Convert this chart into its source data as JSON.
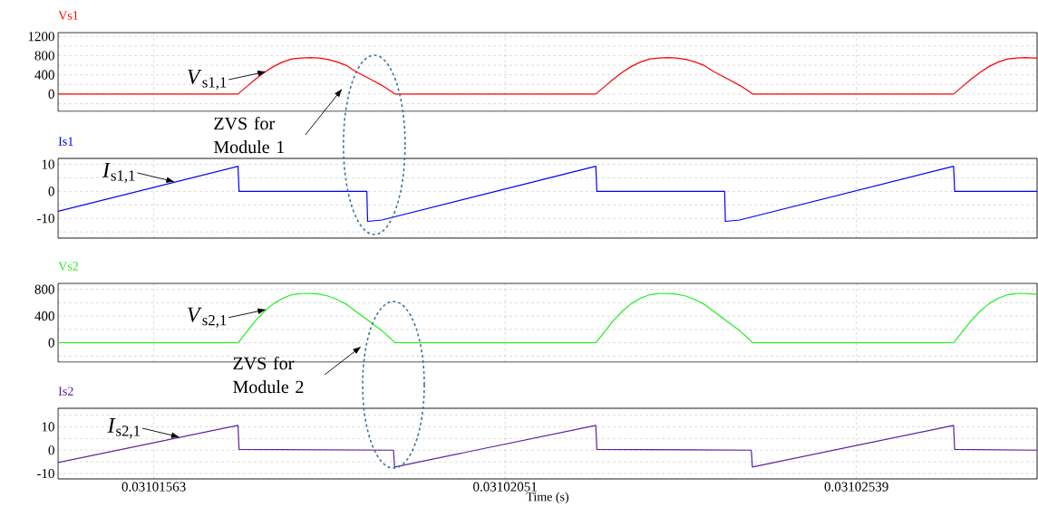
{
  "chart_data": [
    {
      "type": "line",
      "xlim": [
        0.0310143,
        0.0310279
      ],
      "xticks": [
        0.03101563,
        0.03102051,
        0.03102539
      ],
      "ylim": [
        -360,
        1280
      ],
      "yticks": [
        {
          "value": -200,
          "label": null
        },
        0,
        {
          "value": 200,
          "label": null
        },
        400,
        {
          "value": 600,
          "label": null
        },
        800,
        {
          "value": 1000,
          "label": null
        },
        1200
      ],
      "grid": true,
      "tick_labels": "y",
      "series": [
        {
          "name": "Vs1",
          "color": "#ff0000",
          "x": [
            0.0310143,
            0.0310168,
            0.031016925,
            0.03101705,
            0.031017175,
            0.0310173,
            0.031017425,
            0.03101755,
            0.031017675,
            0.0310178,
            0.031017925,
            0.03101805,
            0.031018175,
            0.0310183,
            0.031018425,
            0.03101855,
            0.031018675,
            0.0310188,
            0.031018925,
            0.03101898,
            0.03102177,
            0.031021895,
            0.03102202,
            0.031022145,
            0.03102227,
            0.031022395,
            0.03102252,
            0.031022645,
            0.03102277,
            0.031022895,
            0.03102302,
            0.031023145,
            0.03102327,
            0.031023395,
            0.03102352,
            0.031023645,
            0.03102377,
            0.031023895,
            0.03102395,
            0.03102674,
            0.031026865,
            0.03102699,
            0.031027115,
            0.03102724,
            0.031027365,
            0.03102749,
            0.031027615,
            0.03102774,
            0.031027865,
            0.0310279
          ],
          "values": [
            0,
            0,
            160,
            320,
            460,
            580,
            670,
            730,
            750,
            760,
            750,
            720,
            670,
            600,
            480,
            380,
            280,
            180,
            60,
            0,
            0,
            160,
            320,
            460,
            580,
            670,
            730,
            750,
            760,
            750,
            720,
            670,
            600,
            480,
            380,
            280,
            180,
            60,
            0,
            0,
            160,
            320,
            460,
            580,
            670,
            730,
            750,
            760,
            750,
            750
          ]
        }
      ],
      "annotations": [
        {
          "text": "*V*$_{s1,1}$",
          "x": 0.0310172,
          "y": 470
        }
      ]
    },
    {
      "type": "line",
      "xlim": [
        0.0310143,
        0.0310279
      ],
      "xticks": [
        0.03101563,
        0.03102051,
        0.03102539
      ],
      "ylim": [
        -17.3,
        12.2
      ],
      "yticks": [
        {
          "value": -15,
          "label": null
        },
        -10,
        {
          "value": -5,
          "label": null
        },
        0,
        {
          "value": 5,
          "label": null
        },
        10
      ],
      "grid": true,
      "tick_labels": "y",
      "series": [
        {
          "name": "Is1",
          "color": "#0000ff",
          "x": [
            0.0310143,
            0.0310168,
            0.031016815,
            0.03101859,
            0.0310186,
            0.0310188,
            0.03102177,
            0.031021785,
            0.03102356,
            0.03102357,
            0.03102377,
            0.03102674,
            0.031026755,
            0.0310279
          ],
          "values": [
            -7.4,
            9.3,
            0,
            0,
            -11.1,
            -10.6,
            9.3,
            0,
            0,
            -11.1,
            -10.6,
            9.3,
            0,
            0
          ]
        }
      ],
      "annotations": [
        {
          "text": "*I*$_{s1,1}$",
          "x": 0.03101593,
          "y": 3.5
        },
        "ZVS for Module 1"
      ]
    },
    {
      "type": "line",
      "xlim": [
        0.0310143,
        0.0310279
      ],
      "xticks": [
        0.03101563,
        0.03102051,
        0.03102539
      ],
      "ylim": [
        -290,
        890
      ],
      "yticks": [
        {
          "value": -200,
          "label": null
        },
        0,
        {
          "value": 200,
          "label": null
        },
        400,
        {
          "value": 600,
          "label": null
        },
        800
      ],
      "grid": true,
      "tick_labels": "y",
      "series": [
        {
          "name": "Vs2",
          "color": "#22ee22",
          "x": [
            0.0310143,
            0.0310168,
            0.031016925,
            0.03101705,
            0.031017175,
            0.0310173,
            0.031017425,
            0.03101755,
            0.031017675,
            0.0310178,
            0.031017925,
            0.03101805,
            0.031018175,
            0.0310183,
            0.031018425,
            0.03101855,
            0.031018675,
            0.0310188,
            0.031018925,
            0.03101898,
            0.03102177,
            0.031021895,
            0.03102202,
            0.031022145,
            0.03102227,
            0.031022395,
            0.03102252,
            0.031022645,
            0.03102277,
            0.031022895,
            0.03102302,
            0.031023145,
            0.03102327,
            0.031023395,
            0.03102352,
            0.031023645,
            0.03102377,
            0.031023895,
            0.03102395,
            0.03102674,
            0.031026865,
            0.03102699,
            0.031027115,
            0.03102724,
            0.031027365,
            0.03102749,
            0.031027615,
            0.03102774,
            0.031027865,
            0.0310279
          ],
          "values": [
            0,
            0,
            170,
            340,
            480,
            590,
            670,
            720,
            740,
            740,
            730,
            700,
            650,
            580,
            480,
            380,
            280,
            180,
            60,
            0,
            0,
            170,
            340,
            480,
            590,
            670,
            720,
            740,
            740,
            730,
            700,
            650,
            580,
            480,
            380,
            280,
            180,
            60,
            0,
            0,
            170,
            340,
            480,
            590,
            670,
            720,
            740,
            740,
            730,
            730
          ]
        }
      ],
      "annotations": [
        {
          "text": "*V*$_{s2,1}$",
          "x": 0.0310172,
          "y": 500
        }
      ]
    },
    {
      "type": "line",
      "xlim": [
        0.0310143,
        0.0310279
      ],
      "xticks": [
        0.03101563,
        0.03102051,
        0.03102539
      ],
      "ylim": [
        -12.3,
        17.9
      ],
      "yticks": [
        -10,
        {
          "value": -5,
          "label": null
        },
        0,
        {
          "value": 5,
          "label": null
        },
        10,
        {
          "value": 15,
          "label": null
        }
      ],
      "grid": true,
      "xlabel": "Time (s)",
      "series": [
        {
          "name": "Is2",
          "color": "#5a1fa0",
          "x": [
            0.0310143,
            0.0310168,
            0.031016815,
            0.03101896,
            0.031018975,
            0.03102177,
            0.031021785,
            0.03102393,
            0.031023945,
            0.03102674,
            0.031026755,
            0.0310279
          ],
          "values": [
            -5.3,
            10.6,
            0.3,
            0,
            -7.2,
            10.6,
            0.3,
            0,
            -7.2,
            10.6,
            0.3,
            0
          ]
        }
      ],
      "annotations": [
        {
          "text": "*I*$_{s2,1}$",
          "x": 0.031016,
          "y": 5.5
        },
        "ZVS for Module 2"
      ]
    }
  ]
}
